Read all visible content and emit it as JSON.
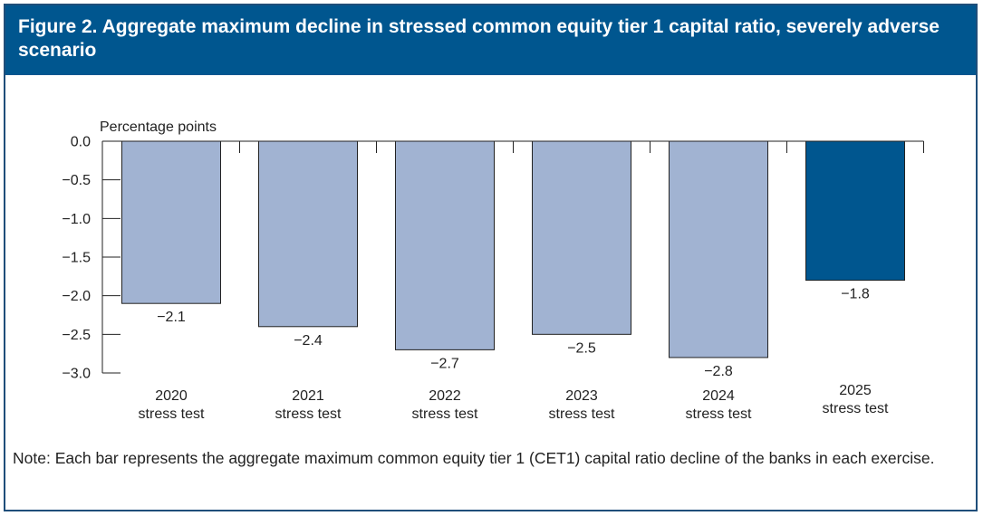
{
  "figure": {
    "title": "Figure 2. Aggregate maximum decline in stressed common equity tier 1 capital ratio, severely adverse scenario",
    "note": "Note: Each bar represents the aggregate maximum common equity tier 1 (CET1) capital ratio decline of the banks in each exercise."
  },
  "colors": {
    "header": "#00568f",
    "bar_previous": "#a1b3d2",
    "bar_current": "#00568f",
    "axis": "#222222"
  },
  "chart_data": {
    "type": "bar",
    "ylabel": "Percentage points",
    "ylim": [
      -3.0,
      0.0
    ],
    "yticks": [
      "0.0",
      "−0.5",
      "−1.0",
      "−1.5",
      "−2.0",
      "−2.5",
      "−3.0"
    ],
    "ytick_values": [
      0,
      -0.5,
      -1.0,
      -1.5,
      -2.0,
      -2.5,
      -3.0
    ],
    "categories": [
      [
        "2020",
        "stress test"
      ],
      [
        "2021",
        "stress test"
      ],
      [
        "2022",
        "stress test"
      ],
      [
        "2023",
        "stress test"
      ],
      [
        "2024",
        "stress test"
      ],
      [
        "2025",
        "stress test"
      ]
    ],
    "values": [
      -2.1,
      -2.4,
      -2.7,
      -2.5,
      -2.8,
      -1.8
    ],
    "data_labels": [
      "−2.1",
      "−2.4",
      "−2.7",
      "−2.5",
      "−2.8",
      "−1.8"
    ],
    "highlight_index": 5,
    "grid": false
  }
}
